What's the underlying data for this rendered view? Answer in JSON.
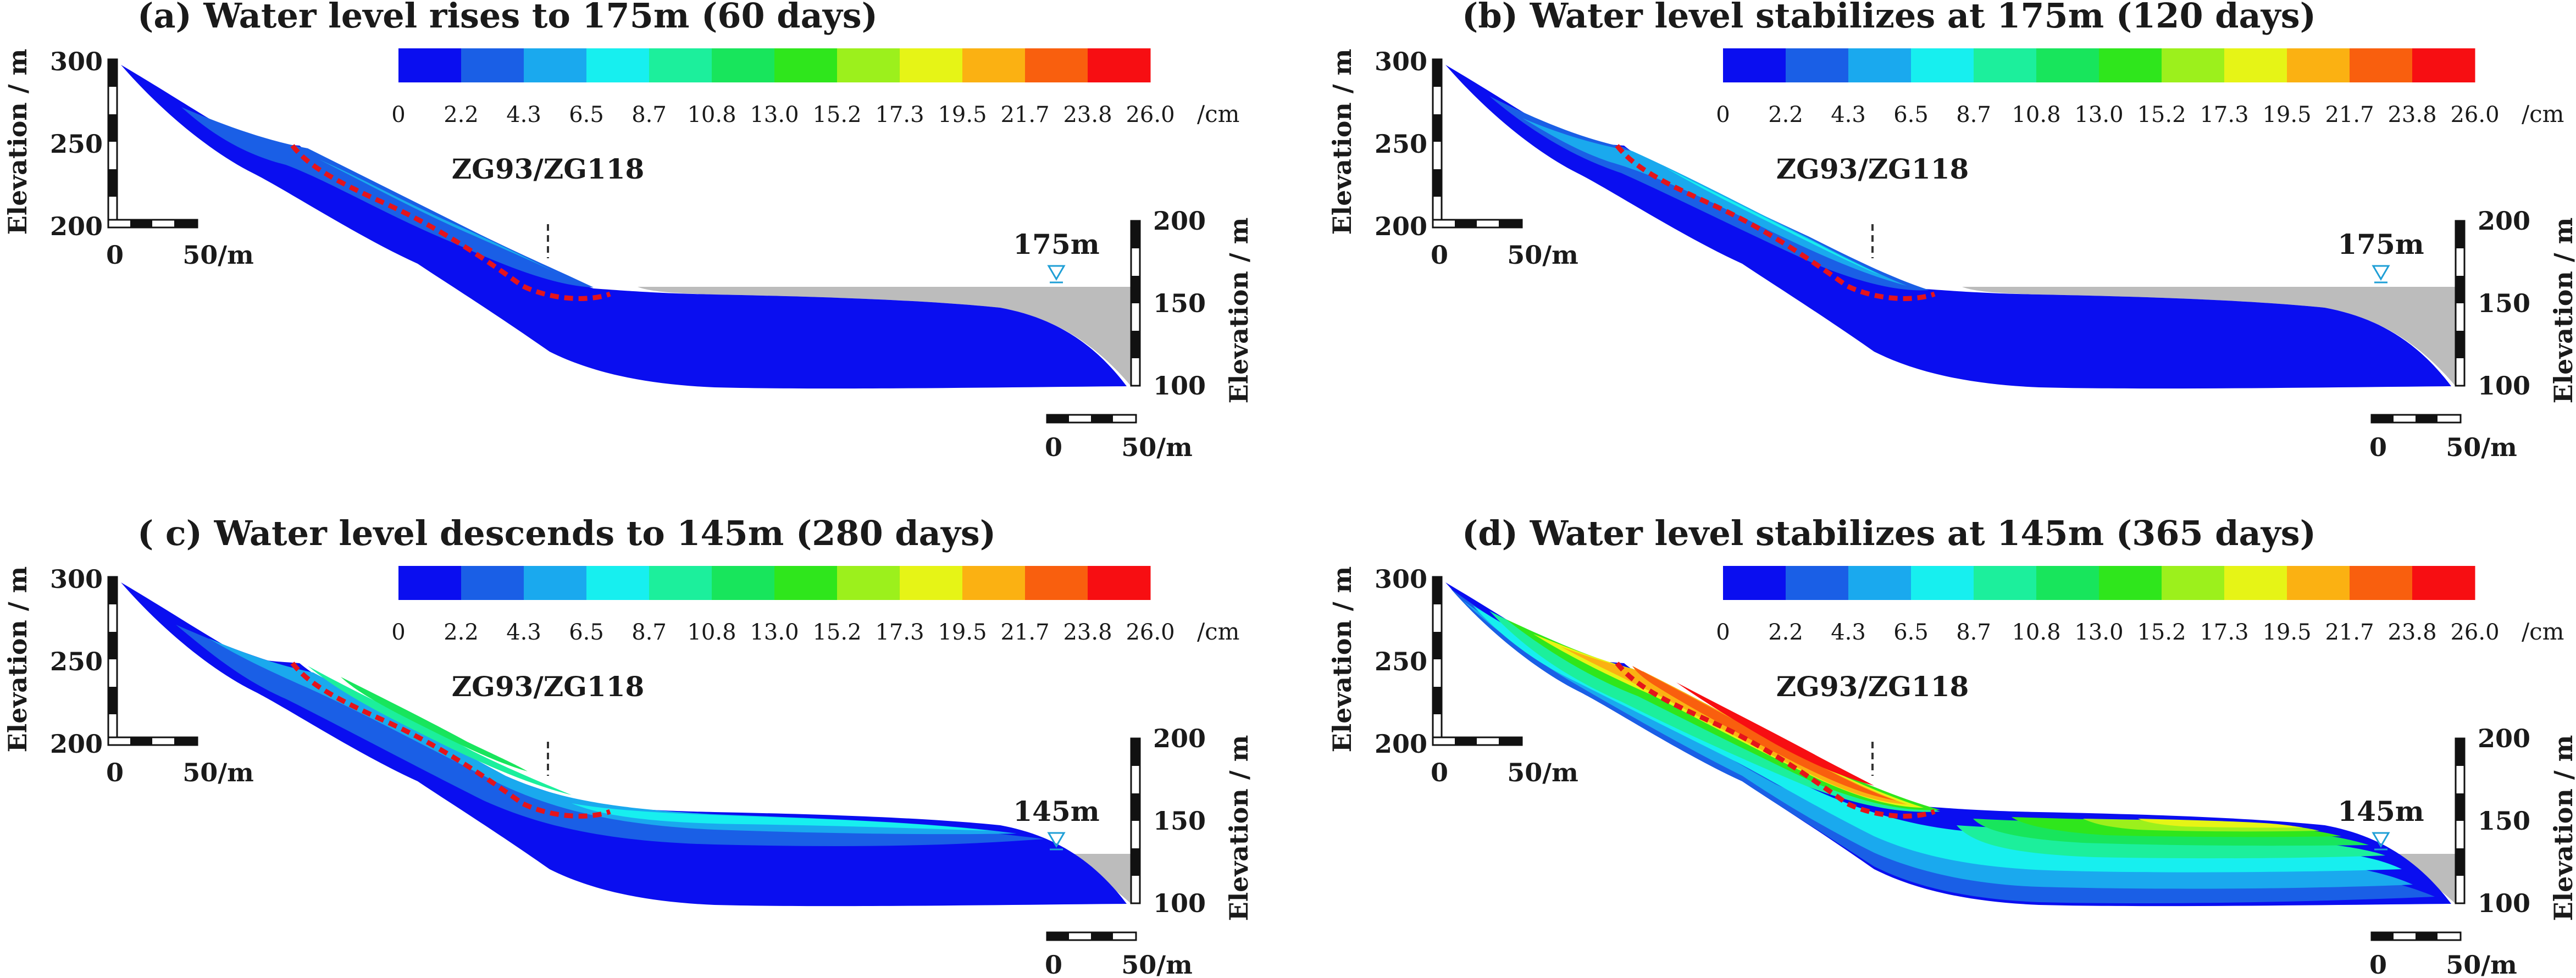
{
  "colorbar": {
    "ticks": [
      "0",
      "2.2",
      "4.3",
      "6.5",
      "8.7",
      "10.8",
      "13.0",
      "15.2",
      "17.3",
      "19.5",
      "21.7",
      "23.8",
      "26.0"
    ],
    "unit": "/cm",
    "colors": [
      "#0a0ef0",
      "#1a5fe6",
      "#1aa9ee",
      "#17efef",
      "#1cef9c",
      "#18e55c",
      "#2fe61c",
      "#9cf01c",
      "#e6f416",
      "#fbb112",
      "#f95f0e",
      "#f70e12"
    ]
  },
  "axes": {
    "left_label": "Elevation / m",
    "right_label": "Elevation / m",
    "left_ticks": [
      "300",
      "250",
      "200"
    ],
    "right_ticks": [
      "200",
      "150",
      "100"
    ],
    "scale_zero": "0",
    "scale_label": "50/m"
  },
  "probe_label": "ZG93/ZG118",
  "panels": [
    {
      "title": "(a) Water level rises to 175m (60 days)",
      "water_label": "175m",
      "water_level_m": 175,
      "days": 60
    },
    {
      "title": "(b) Water level stabilizes at 175m (120 days)",
      "water_label": "175m",
      "water_level_m": 175,
      "days": 120
    },
    {
      "title": "( c) Water level descends to 145m (280 days)",
      "water_label": "145m",
      "water_level_m": 145,
      "days": 280
    },
    {
      "title": "(d) Water level stabilizes at 145m (365 days)",
      "water_label": "145m",
      "water_level_m": 145,
      "days": 365
    }
  ]
}
